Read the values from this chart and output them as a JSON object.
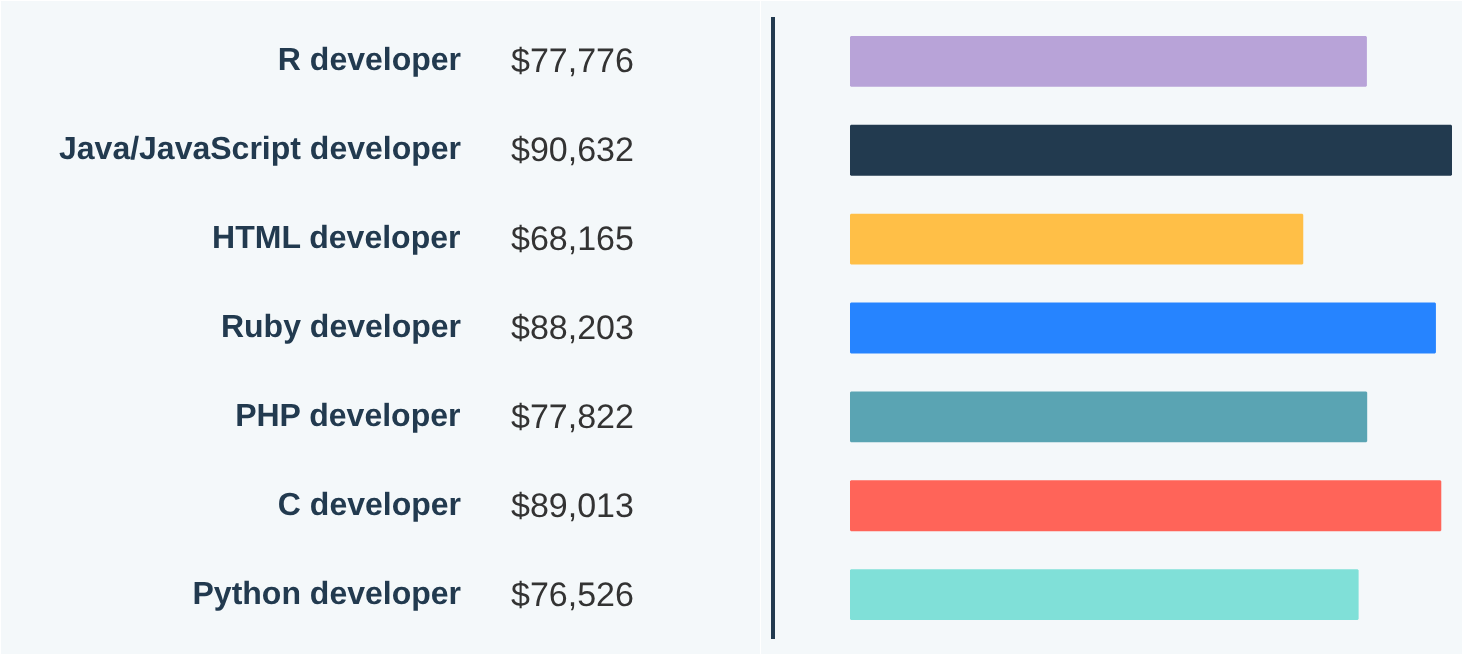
{
  "chart_data": {
    "type": "bar",
    "orientation": "horizontal",
    "categories": [
      "R developer",
      "Java/JavaScript developer",
      "HTML developer",
      "Ruby developer",
      "PHP developer",
      "C developer",
      "Python developer"
    ],
    "values": [
      77776,
      90632,
      68165,
      88203,
      77822,
      89013,
      76526
    ],
    "value_labels": [
      "$77,776",
      "$90,632",
      "$68,165",
      "$88,203",
      "$77,822",
      "$89,013",
      "$76,526"
    ],
    "colors": [
      "#b8a3d8",
      "#223a4f",
      "#ffbf47",
      "#2684ff",
      "#5aa4b3",
      "#ff6459",
      "#80e0d8"
    ]
  }
}
